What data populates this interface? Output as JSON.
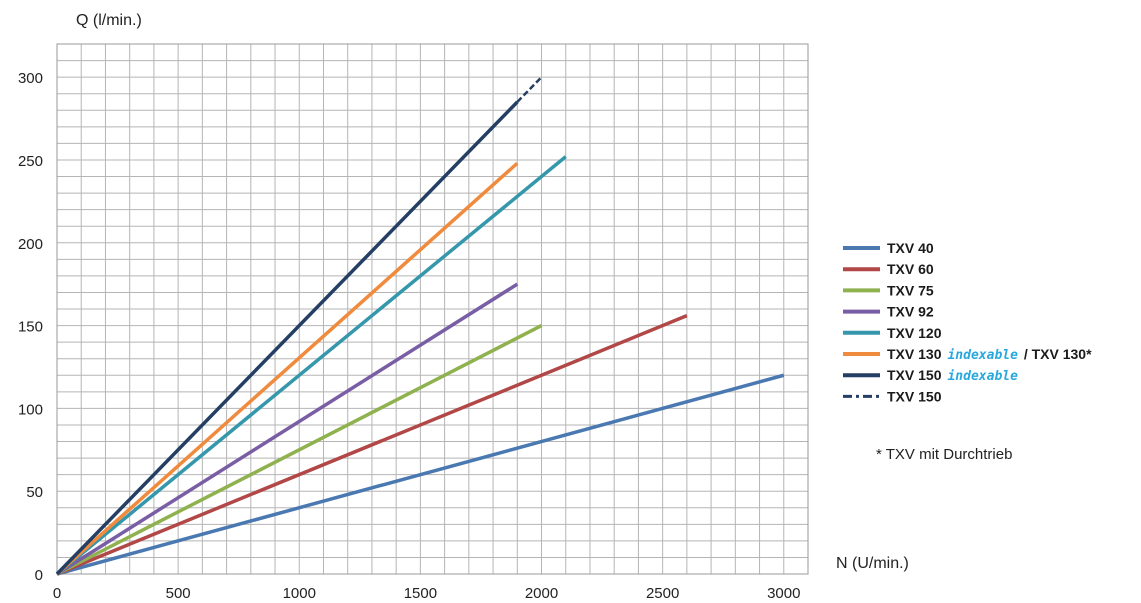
{
  "chart_data": {
    "type": "line",
    "title": "",
    "xlabel": "N (U/min.)",
    "ylabel": "Q (l/min.)",
    "xlim": [
      0,
      3100
    ],
    "ylim": [
      0,
      320
    ],
    "xticks": [
      "0",
      "500",
      "1000",
      "1500",
      "2000",
      "2500",
      "3000"
    ],
    "yticks": [
      "0",
      "50",
      "100",
      "150",
      "200",
      "250",
      "300"
    ],
    "grid": true,
    "legend_position": "right",
    "series": [
      {
        "name": "TXV 40",
        "color": "#4a79b2",
        "style": "solid",
        "x": [
          0,
          3000
        ],
        "y": [
          0,
          120
        ]
      },
      {
        "name": "TXV 60",
        "color": "#b24747",
        "style": "solid",
        "x": [
          0,
          2600
        ],
        "y": [
          0,
          156
        ]
      },
      {
        "name": "TXV 75",
        "color": "#8fb24f",
        "style": "solid",
        "x": [
          0,
          2000
        ],
        "y": [
          0,
          150
        ]
      },
      {
        "name": "TXV 92",
        "color": "#7a5ea5",
        "style": "solid",
        "x": [
          0,
          1900
        ],
        "y": [
          0,
          175
        ]
      },
      {
        "name": "TXV 120",
        "color": "#3597ac",
        "style": "solid",
        "x": [
          0,
          2100
        ],
        "y": [
          0,
          252
        ]
      },
      {
        "name": "TXV 130",
        "name_note": "indexable",
        "name_suffix": " / TXV 130*",
        "color": "#f08a3c",
        "style": "solid",
        "x": [
          0,
          1900
        ],
        "y": [
          0,
          248
        ]
      },
      {
        "name": "TXV 150",
        "name_note": "indexable",
        "name_suffix": "",
        "color": "#243f63",
        "style": "solid",
        "x": [
          0,
          1900
        ],
        "y": [
          0,
          285
        ]
      },
      {
        "name": "TXV 150",
        "color": "#243f63",
        "style": "dashed",
        "x": [
          1900,
          2000
        ],
        "y": [
          285,
          300
        ]
      }
    ],
    "footnote": "* TXV mit Durchtrieb"
  }
}
